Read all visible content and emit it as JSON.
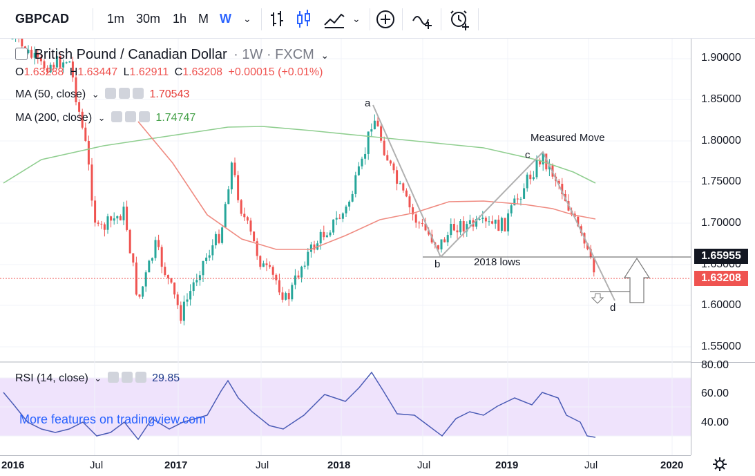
{
  "toolbar": {
    "symbol": "GBPCAD",
    "intervals": [
      "1m",
      "30m",
      "1h",
      "M",
      "W"
    ],
    "active_interval": "W"
  },
  "legend": {
    "pair_name": "British Pound / Canadian Dollar",
    "timeframe": "· 1W · FXCM",
    "open_label": "O",
    "open": "1.63288",
    "high_label": "H",
    "high": "1.63447",
    "low_label": "L",
    "low": "1.62911",
    "close_label": "C",
    "close": "1.63208",
    "change": "+0.00015 (+0.01%)",
    "ma50_label": "MA (50, close)",
    "ma50_value": "1.70543",
    "ma200_label": "MA (200, close)",
    "ma200_value": "1.74747",
    "rsi_label": "RSI (14, close)",
    "rsi_value": "29.85"
  },
  "annotations": {
    "a": "a",
    "b": "b",
    "c": "c",
    "d": "d",
    "measured_move": "Measured Move",
    "lows_2018": "2018 lows"
  },
  "price_axis": {
    "ticks": [
      "1.90000",
      "1.85000",
      "1.80000",
      "1.75000",
      "1.70000",
      "1.65000",
      "1.60000",
      "1.55000"
    ],
    "badge_2018_lows": "1.65955",
    "badge_last_price": "1.63208"
  },
  "rsi_axis": {
    "ticks": [
      "80.00",
      "60.00",
      "40.00"
    ]
  },
  "time_axis": [
    "2016",
    "Jul",
    "2017",
    "Jul",
    "2018",
    "Jul",
    "2019",
    "Jul",
    "2020"
  ],
  "promo": "More features on tradingview.com",
  "colors": {
    "up": "#26a69a",
    "down": "#ef5350",
    "ma50": "#ef8a80",
    "ma200": "#8fce8f",
    "rsi_line": "#4a5bb5",
    "rsi_band": "#efe3fc",
    "price_badge": "#ef5350",
    "lows_badge": "#131722"
  }
}
